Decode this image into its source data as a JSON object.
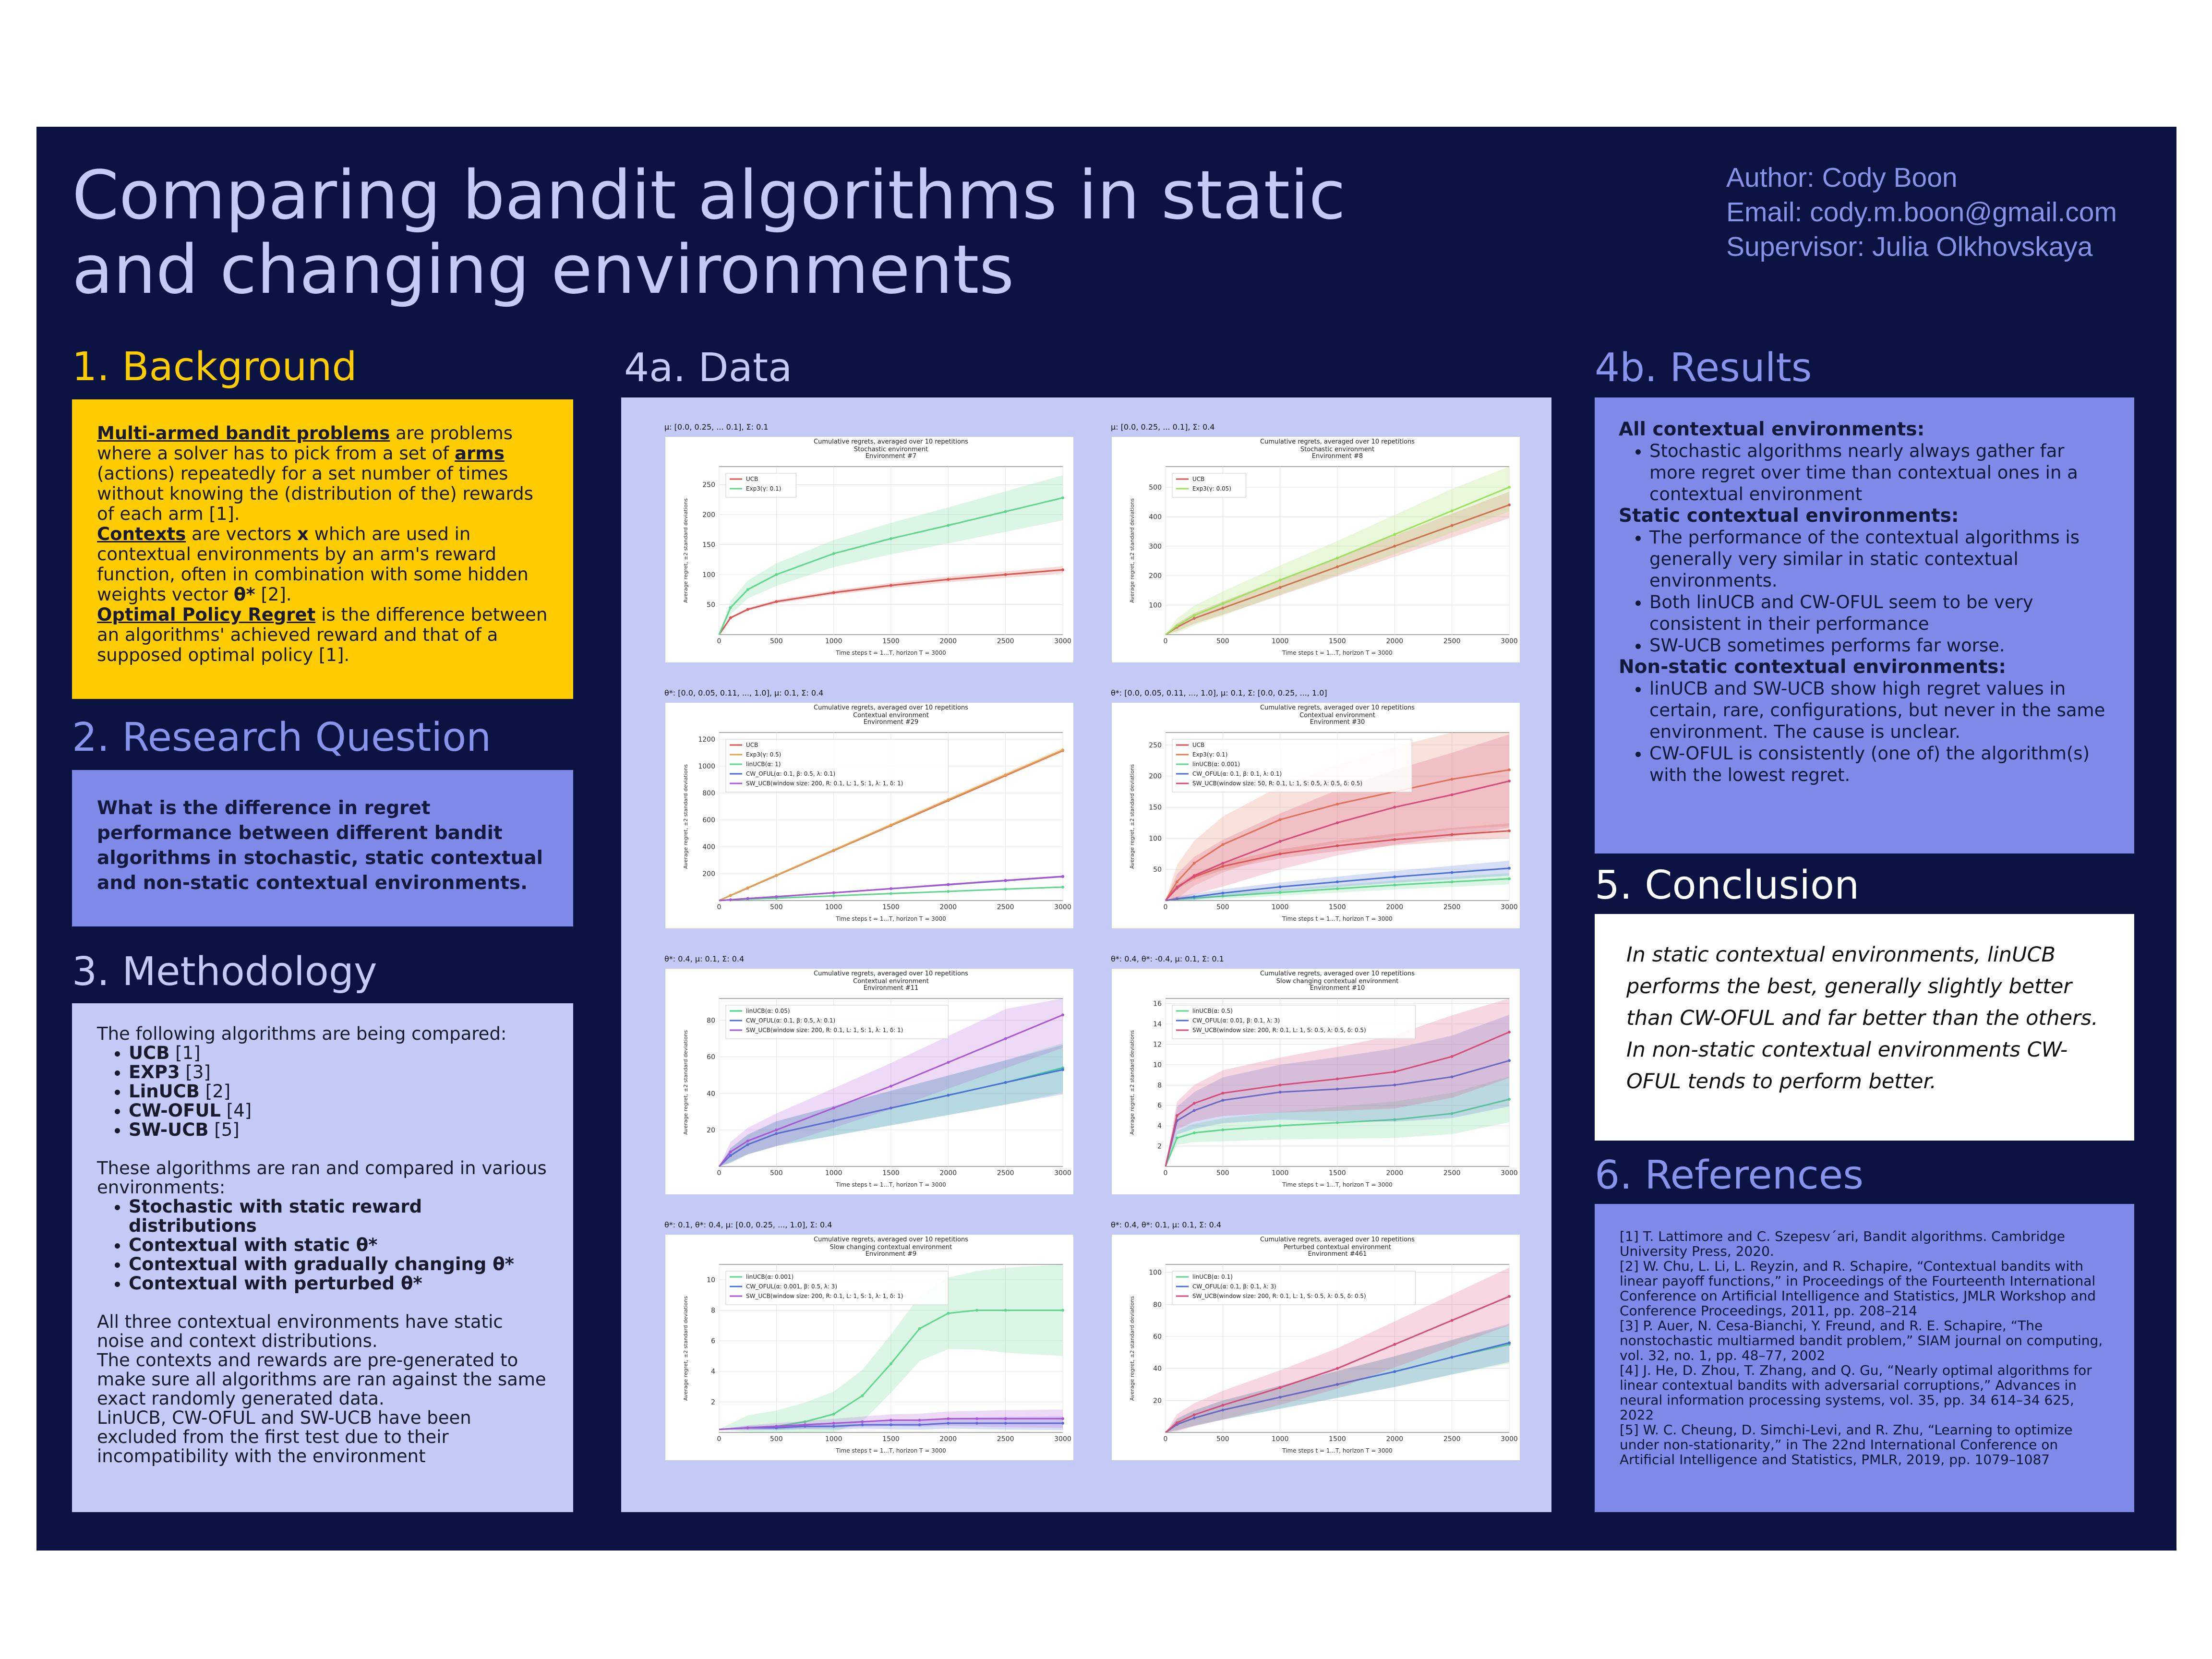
{
  "title": "Comparing bandit algorithms in static and changing environments",
  "author": {
    "name": "Author: Cody Boon",
    "email": "Email: cody.m.boon@gmail.com",
    "supervisor": "Supervisor: Julia Olkhovskaya"
  },
  "colors": {
    "background": "#0a1342",
    "yellow": "#ffcc00",
    "blue": "#7f8ae8",
    "lavender": "#c3caf5"
  },
  "background": {
    "heading": "1. Background",
    "p1_term": "Multi-armed bandit problems",
    "p1_a": " are problems where a solver has to pick from a set of ",
    "p1_term2": "arms",
    "p1_b": " (actions) repeatedly for a set number of times without knowing the (distribution of the) rewards of each arm [1].",
    "p2_term": "Contexts",
    "p2_a": " are vectors ",
    "p2_x": "x",
    "p2_b": " which are used in contextual environments by an arm's reward function, often in combination with some hidden weights vector ",
    "p2_theta": "θ*",
    "p2_c": " [2].",
    "p3_term": "Optimal Policy Regret",
    "p3_a": " is the difference between an algorithms' achieved reward and that of a supposed optimal policy [1]."
  },
  "research": {
    "heading": "2. Research Question",
    "text": "What is the difference in regret performance between different bandit algorithms in stochastic, static contextual and non-static contextual environments."
  },
  "methodology": {
    "heading": "3. Methodology",
    "intro": "The following algorithms are being compared:",
    "algorithms": [
      {
        "name": "UCB",
        "ref": " [1]"
      },
      {
        "name": "EXP3",
        "ref": " [3]"
      },
      {
        "name": "LinUCB",
        "ref": " [2]"
      },
      {
        "name": "CW-OFUL",
        "ref": " [4]"
      },
      {
        "name": "SW-UCB",
        "ref": " [5]"
      }
    ],
    "env_intro": "These algorithms are ran and compared in various environments:",
    "environments": [
      "Stochastic with static reward distributions",
      "Contextual with static θ*",
      "Contextual with gradually changing θ*",
      "Contextual with perturbed θ*"
    ],
    "p1": "All three contextual environments have static noise and context distributions.",
    "p2": "The contexts and rewards are pre-generated to make sure all algorithms are ran against the same exact randomly generated data.",
    "p3": "LinUCB, CW-OFUL and SW-UCB have been excluded from the first test due to their incompatibility with the environment"
  },
  "data": {
    "heading": "4a. Data"
  },
  "results": {
    "heading": "4b. Results",
    "sections": [
      {
        "title": "All contextual environments:",
        "items": [
          "Stochastic algorithms nearly always gather far more regret over time than contextual ones in a contextual environment"
        ]
      },
      {
        "title": "Static contextual environments:",
        "items": [
          "The performance of the contextual algorithms is generally very similar in static contextual environments.",
          "Both linUCB and CW-OFUL seem to be very consistent in their performance",
          "SW-UCB sometimes performs far worse."
        ]
      },
      {
        "title": "Non-static contextual environments:",
        "items": [
          "linUCB and SW-UCB show high regret values in certain, rare, configurations, but never in the same environment. The cause is unclear.",
          "CW-OFUL is consistently (one of) the algorithm(s) with the lowest regret."
        ]
      }
    ]
  },
  "conclusion": {
    "heading": "5. Conclusion",
    "text": "In static contextual environments, linUCB performs the best, generally slightly better than CW-OFUL and far better than the others. In non-static contextual environments CW-OFUL tends to perform better."
  },
  "references": {
    "heading": "6. References",
    "items": [
      "[1] T. Lattimore and C. Szepesv´ari, Bandit algorithms. Cambridge University Press, 2020.",
      "[2] W. Chu, L. Li, L. Reyzin, and R. Schapire, “Contextual bandits with linear payoff functions,” in Proceedings of the Fourteenth International Conference on Artificial Intelligence and Statistics, JMLR Workshop and Conference Proceedings, 2011, pp. 208–214",
      "[3] P. Auer, N. Cesa-Bianchi, Y. Freund, and R. E. Schapire, “The nonstochastic multiarmed bandit problem,” SIAM journal on computing, vol. 32, no. 1, pp. 48–77, 2002",
      "[4] J. He, D. Zhou, T. Zhang, and Q. Gu, “Nearly optimal algorithms for linear contextual bandits with adversarial corruptions,” Advances in neural information processing systems, vol. 35, pp. 34 614–34 625, 2022",
      "[5] W. C. Cheung, D. Simchi-Levi, and R. Zhu, “Learning to optimize under non-stationarity,” in The 22nd International Conference on Artificial Intelligence and Statistics, PMLR, 2019, pp. 1079–1087"
    ]
  },
  "chart_data": [
    {
      "type": "line",
      "caption": "μ: [0.0, 0.25, ... 0.1], Σ: 0.1",
      "title": "Cumulative regrets, averaged over 10 repetitions",
      "subtitle1": "Stochastic environment",
      "subtitle2": "Environment #7",
      "xlabel": "Time steps t = 1...T, horizon T = 3000",
      "ylabel": "Average regret, ±2 standard deviations",
      "xlim": [
        0,
        3000
      ],
      "ylim": [
        0,
        280
      ],
      "yticks": [
        50,
        100,
        150,
        200,
        250
      ],
      "xticks": [
        0,
        500,
        1000,
        1500,
        2000,
        2500,
        3000
      ],
      "x": [
        0,
        100,
        250,
        500,
        1000,
        1500,
        2000,
        2500,
        3000
      ],
      "series": [
        {
          "name": "UCB",
          "color": "#d9534f",
          "band": 4,
          "values": [
            0,
            28,
            42,
            55,
            70,
            82,
            92,
            100,
            108
          ]
        },
        {
          "name": "Exp3(γ: 0.1)",
          "color": "#5cd68a",
          "band": 25,
          "values": [
            0,
            45,
            75,
            100,
            135,
            160,
            182,
            205,
            228
          ]
        }
      ]
    },
    {
      "type": "line",
      "caption": "μ: [0.0, 0.25, ... 0.1], Σ: 0.4",
      "title": "Cumulative regrets, averaged over 10 repetitions",
      "subtitle1": "Stochastic environment",
      "subtitle2": "Environment #8",
      "xlabel": "Time steps t = 1...T, horizon T = 3000",
      "ylabel": "Average regret, ±2 standard deviations",
      "xlim": [
        0,
        3000
      ],
      "ylim": [
        0,
        570
      ],
      "yticks": [
        100,
        200,
        300,
        400,
        500
      ],
      "xticks": [
        0,
        500,
        1000,
        1500,
        2000,
        2500,
        3000
      ],
      "x": [
        0,
        100,
        250,
        500,
        1000,
        1500,
        2000,
        2500,
        3000
      ],
      "series": [
        {
          "name": "UCB",
          "color": "#d9534f",
          "band": 30,
          "values": [
            0,
            25,
            55,
            90,
            160,
            230,
            300,
            370,
            440
          ]
        },
        {
          "name": "Exp3(γ: 0.05)",
          "color": "#9be05a",
          "band": 55,
          "values": [
            0,
            30,
            65,
            105,
            185,
            260,
            340,
            420,
            500
          ]
        }
      ]
    },
    {
      "type": "line",
      "caption": "θ*: [0.0, 0.05, 0.11, ..., 1.0], μ: 0.1, Σ: 0.4",
      "title": "Cumulative regrets, averaged over 10 repetitions",
      "subtitle1": "Contextual environment",
      "subtitle2": "Environment #29",
      "xlabel": "Time steps t = 1...T, horizon T = 3000",
      "ylabel": "Average regret, ±2 standard deviations",
      "xlim": [
        0,
        3000
      ],
      "ylim": [
        0,
        1250
      ],
      "yticks": [
        200,
        400,
        600,
        800,
        1000,
        1200
      ],
      "xticks": [
        0,
        500,
        1000,
        1500,
        2000,
        2500,
        3000
      ],
      "x": [
        0,
        100,
        250,
        500,
        1000,
        1500,
        2000,
        2500,
        3000
      ],
      "series": [
        {
          "name": "UCB",
          "color": "#d9534f",
          "band": 5,
          "values": [
            0,
            38,
            93,
            186,
            372,
            558,
            744,
            930,
            1116
          ]
        },
        {
          "name": "Exp3(γ: 0.5)",
          "color": "#e0a050",
          "band": 12,
          "values": [
            0,
            38,
            95,
            188,
            375,
            562,
            750,
            935,
            1120
          ]
        },
        {
          "name": "linUCB(α: 1)",
          "color": "#5cd68a",
          "band": 3,
          "values": [
            0,
            5,
            10,
            18,
            35,
            52,
            68,
            85,
            100
          ]
        },
        {
          "name": "CW_OFUL(α: 0.1, β: 0.5, λ: 0.1)",
          "color": "#4a6fd6",
          "band": 3,
          "values": [
            0,
            6,
            15,
            28,
            58,
            88,
            118,
            148,
            178
          ]
        },
        {
          "name": "SW_UCB(window size: 200, R: 0.1, L: 1, S: 1, λ: 1, δ: 1)",
          "color": "#a855d6",
          "band": 4,
          "values": [
            0,
            6,
            15,
            29,
            58,
            89,
            120,
            150,
            180
          ]
        }
      ]
    },
    {
      "type": "line",
      "caption": "θ*: [0.0, 0.05, 0.11, ..., 1.0], μ: 0.1, Σ: [0.0, 0.25, ..., 1.0]",
      "title": "Cumulative regrets, averaged over 10 repetitions",
      "subtitle1": "Contextual environment",
      "subtitle2": "Environment #30",
      "xlabel": "Time steps t = 1...T, horizon T = 3000",
      "ylabel": "Average regret, ±2 standard deviations",
      "xlim": [
        0,
        3000
      ],
      "ylim": [
        0,
        270
      ],
      "yticks": [
        50,
        100,
        150,
        200,
        250
      ],
      "xticks": [
        0,
        500,
        1000,
        1500,
        2000,
        2500,
        3000
      ],
      "x": [
        0,
        100,
        250,
        500,
        1000,
        1500,
        2000,
        2500,
        3000
      ],
      "series": [
        {
          "name": "UCB",
          "color": "#d9534f",
          "band": 8,
          "values": [
            0,
            22,
            38,
            55,
            75,
            88,
            98,
            106,
            112
          ]
        },
        {
          "name": "Exp3(γ: 0.1)",
          "color": "#e07a50",
          "band": 60,
          "values": [
            0,
            30,
            60,
            90,
            130,
            155,
            175,
            195,
            210
          ]
        },
        {
          "name": "linUCB(α: 0.001)",
          "color": "#5cd68a",
          "band": 6,
          "values": [
            0,
            2,
            4,
            7,
            13,
            19,
            25,
            30,
            35
          ]
        },
        {
          "name": "CW_OFUL(α: 0.1, β: 0.1, λ: 0.1)",
          "color": "#4a6fd6",
          "band": 8,
          "values": [
            0,
            3,
            6,
            12,
            22,
            30,
            38,
            45,
            52
          ]
        },
        {
          "name": "SW_UCB(window size: 50, R: 0.1, L: 1, S: 0.5, λ: 0.5, δ: 0.5)",
          "color": "#d64a7a",
          "band": 50,
          "values": [
            0,
            20,
            40,
            60,
            95,
            125,
            150,
            170,
            192
          ]
        }
      ]
    },
    {
      "type": "line",
      "caption": "θ*: 0.4, μ: 0.1, Σ: 0.4",
      "title": "Cumulative regrets, averaged over 10 repetitions",
      "subtitle1": "Contextual environment",
      "subtitle2": "Environment #11",
      "xlabel": "Time steps t = 1...T, horizon T = 3000",
      "ylabel": "Average regret, ±2 standard deviations",
      "xlim": [
        0,
        3000
      ],
      "ylim": [
        0,
        92
      ],
      "yticks": [
        20,
        40,
        60,
        80
      ],
      "xticks": [
        0,
        500,
        1000,
        1500,
        2000,
        2500,
        3000
      ],
      "x": [
        0,
        100,
        250,
        500,
        1000,
        1500,
        2000,
        2500,
        3000
      ],
      "series": [
        {
          "name": "linUCB(α: 0.05)",
          "color": "#3ed68a",
          "band": 9,
          "values": [
            0,
            6,
            12,
            18,
            25,
            32,
            39,
            46,
            54
          ]
        },
        {
          "name": "CW_OFUL(α: 0.1, β: 0.5, λ: 0.1)",
          "color": "#4a6fd6",
          "band": 9,
          "values": [
            0,
            6,
            12,
            18,
            25,
            32,
            39,
            46,
            53
          ]
        },
        {
          "name": "SW_UCB(window size: 200, R: 0.1, L: 1, S: 1, λ: 1, δ: 1)",
          "color": "#a855d6",
          "band": 12,
          "values": [
            0,
            8,
            14,
            20,
            32,
            44,
            57,
            70,
            83
          ]
        }
      ]
    },
    {
      "type": "line",
      "caption": "θ*: 0.4, θ*: -0.4, μ: 0.1, Σ: 0.1",
      "title": "Cumulative regrets, averaged over 10 repetitions",
      "subtitle1": "Slow changing contextual environment",
      "subtitle2": "Environment #10",
      "xlabel": "Time steps t = 1...T, horizon T = 3000",
      "ylabel": "Average regret, ±2 standard deviations",
      "xlim": [
        0,
        3000
      ],
      "ylim": [
        0,
        16.5
      ],
      "yticks": [
        2,
        4,
        6,
        8,
        10,
        12,
        14,
        16
      ],
      "xticks": [
        0,
        500,
        1000,
        1500,
        2000,
        2500,
        3000
      ],
      "x": [
        0,
        100,
        250,
        500,
        1000,
        1500,
        2000,
        2500,
        3000
      ],
      "series": [
        {
          "name": "linUCB(α: 0.5)",
          "color": "#5cd68a",
          "band": 1.5,
          "values": [
            0,
            2.8,
            3.3,
            3.6,
            4.0,
            4.3,
            4.6,
            5.2,
            6.6
          ]
        },
        {
          "name": "CW_OFUL(α: 0.01, β: 0.1, λ: 3)",
          "color": "#4a6fd6",
          "band": 3,
          "values": [
            0,
            4.5,
            5.5,
            6.5,
            7.3,
            7.6,
            8.0,
            8.8,
            10.4
          ]
        },
        {
          "name": "SW_UCB(window size: 200, R: 0.1, L: 1, S: 0.5, λ: 0.5, δ: 0.5)",
          "color": "#d64a7a",
          "band": 3,
          "values": [
            0,
            5.0,
            6.2,
            7.2,
            8.0,
            8.6,
            9.3,
            10.8,
            13.2
          ]
        }
      ]
    },
    {
      "type": "line",
      "caption": "θ*: 0.1, θ*: 0.4, μ: [0.0, 0.25, ..., 1.0], Σ: 0.4",
      "title": "Cumulative regrets, averaged over 10 repetitions",
      "subtitle1": "Slow changing contextual environment",
      "subtitle2": "Environment #9",
      "xlabel": "Time steps t = 1...T, horizon T = 3000",
      "ylabel": "Average regret, ±2 standard deviations",
      "xlim": [
        0,
        3000
      ],
      "ylim": [
        0,
        11
      ],
      "yticks": [
        2,
        4,
        6,
        8,
        10
      ],
      "xticks": [
        0,
        500,
        1000,
        1500,
        2000,
        2500,
        3000
      ],
      "x": [
        0,
        250,
        500,
        750,
        1000,
        1250,
        1500,
        1750,
        2000,
        2250,
        2500,
        3000
      ],
      "series": [
        {
          "name": "linUCB(α: 0.001)",
          "color": "#5cd68a",
          "band": 2,
          "values": [
            0.2,
            0.3,
            0.4,
            0.7,
            1.2,
            2.4,
            4.5,
            6.8,
            7.8,
            8.0,
            8.0,
            8.0
          ]
        },
        {
          "name": "CW_OFUL(α: 0.001, β: 0.5, λ: 3)",
          "color": "#4a6fd6",
          "band": 0.3,
          "values": [
            0.2,
            0.3,
            0.3,
            0.4,
            0.4,
            0.5,
            0.5,
            0.5,
            0.6,
            0.6,
            0.6,
            0.6
          ]
        },
        {
          "name": "SW_UCB(window size: 200, R: 0.1, L: 1, S: 1, λ: 1, δ: 1)",
          "color": "#a855d6",
          "band": 0.4,
          "values": [
            0.2,
            0.3,
            0.4,
            0.5,
            0.6,
            0.7,
            0.8,
            0.8,
            0.9,
            0.9,
            0.9,
            0.9
          ]
        }
      ]
    },
    {
      "type": "line",
      "caption": "θ*: 0.4, θ*: 0.1, μ: 0.1, Σ: 0.4",
      "title": "Cumulative regrets, averaged over 10 repetitions",
      "subtitle1": "Perturbed contextual environment",
      "subtitle2": "Environment #461",
      "xlabel": "Time steps t = 1...T, horizon T = 3000",
      "ylabel": "Average regret, ±2 standard deviations",
      "xlim": [
        0,
        3000
      ],
      "ylim": [
        0,
        105
      ],
      "yticks": [
        20,
        40,
        60,
        80,
        100
      ],
      "xticks": [
        0,
        500,
        1000,
        1500,
        2000,
        2500,
        3000
      ],
      "x": [
        0,
        100,
        250,
        500,
        1000,
        1500,
        2000,
        2500,
        3000
      ],
      "series": [
        {
          "name": "linUCB(α: 0.1)",
          "color": "#5cd68a",
          "band": 8,
          "values": [
            0,
            5,
            9,
            14,
            22,
            30,
            38,
            47,
            55
          ]
        },
        {
          "name": "CW_OFUL(α: 0.1, β: 0.1, λ: 3)",
          "color": "#4a6fd6",
          "band": 8,
          "values": [
            0,
            5,
            9,
            14,
            22,
            30,
            38,
            47,
            56
          ]
        },
        {
          "name": "SW_UCB(window size: 200, R: 0.1, L: 1, S: 0.5, λ: 0.5, δ: 0.5)",
          "color": "#d64a7a",
          "band": 12,
          "values": [
            0,
            6,
            11,
            17,
            28,
            40,
            55,
            70,
            85
          ]
        }
      ]
    }
  ]
}
